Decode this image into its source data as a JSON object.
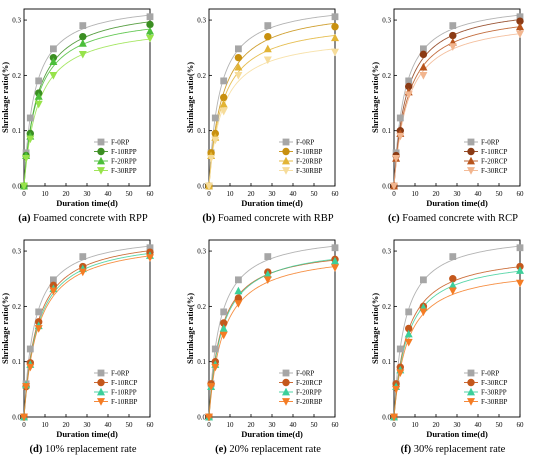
{
  "chart_data": [
    {
      "type": "scatter",
      "panel_label": "(a)",
      "caption": "Foamed concrete with RPP",
      "xlabel": "Duration time(d)",
      "ylabel": "Shrinkage ratio(%)",
      "xlim": [
        0,
        60
      ],
      "ylim": [
        0,
        0.32
      ],
      "xticks": [
        "0",
        "10",
        "20",
        "30",
        "40",
        "50",
        "60"
      ],
      "yticks": [
        "0.0",
        "0.1",
        "0.2",
        "0.3"
      ],
      "legend_position": "lower-right",
      "x": [
        0,
        1,
        3,
        7,
        14,
        28,
        60
      ],
      "series": [
        {
          "name": "F-0RP",
          "color": "#a6a6a6",
          "marker": "square",
          "values": [
            0,
            0.06,
            0.123,
            0.19,
            0.248,
            0.29,
            0.306
          ]
        },
        {
          "name": "F-10RPP",
          "color": "#3b8e22",
          "marker": "circle",
          "values": [
            0,
            0.055,
            0.095,
            0.168,
            0.232,
            0.27,
            0.292
          ]
        },
        {
          "name": "F-20RPP",
          "color": "#4cbf3a",
          "marker": "triangle-up",
          "values": [
            0,
            0.055,
            0.09,
            0.162,
            0.225,
            0.258,
            0.28
          ]
        },
        {
          "name": "F-30RPP",
          "color": "#97e34a",
          "marker": "triangle-down",
          "values": [
            0,
            0.05,
            0.085,
            0.148,
            0.2,
            0.238,
            0.267
          ]
        }
      ]
    },
    {
      "type": "scatter",
      "panel_label": "(b)",
      "caption": "Foamed concrete with RBP",
      "xlabel": "Duration time(d)",
      "ylabel": "Shrinkage ratio(%)",
      "xlim": [
        0,
        60
      ],
      "ylim": [
        0,
        0.32
      ],
      "xticks": [
        "0",
        "10",
        "20",
        "30",
        "40",
        "50",
        "60"
      ],
      "yticks": [
        "0.0",
        "0.1",
        "0.2",
        "0.3"
      ],
      "legend_position": "lower-right",
      "x": [
        0,
        1,
        3,
        7,
        14,
        28,
        60
      ],
      "series": [
        {
          "name": "F-0RP",
          "color": "#a6a6a6",
          "marker": "square",
          "values": [
            0,
            0.06,
            0.123,
            0.19,
            0.248,
            0.29,
            0.306
          ]
        },
        {
          "name": "F-10RBP",
          "color": "#c8900f",
          "marker": "circle",
          "values": [
            0,
            0.06,
            0.095,
            0.16,
            0.232,
            0.27,
            0.288
          ]
        },
        {
          "name": "F-20RBP",
          "color": "#e2b435",
          "marker": "triangle-up",
          "values": [
            0,
            0.055,
            0.088,
            0.148,
            0.215,
            0.248,
            0.268
          ]
        },
        {
          "name": "F-30RBP",
          "color": "#f6dc9a",
          "marker": "triangle-down",
          "values": [
            0,
            0.05,
            0.083,
            0.135,
            0.2,
            0.228,
            0.242
          ]
        }
      ]
    },
    {
      "type": "scatter",
      "panel_label": "(c)",
      "caption": "Foamed concrete with RCP",
      "xlabel": "Duration time(d)",
      "ylabel": "Shrinkage ratio(%)",
      "xlim": [
        0,
        60
      ],
      "ylim": [
        0,
        0.32
      ],
      "xticks": [
        "0",
        "10",
        "20",
        "30",
        "40",
        "50",
        "60"
      ],
      "yticks": [
        "0.0",
        "0.1",
        "0.2",
        "0.3"
      ],
      "legend_position": "lower-right",
      "x": [
        0,
        1,
        3,
        7,
        14,
        28,
        60
      ],
      "series": [
        {
          "name": "F-0RP",
          "color": "#a6a6a6",
          "marker": "square",
          "values": [
            0,
            0.06,
            0.123,
            0.19,
            0.248,
            0.29,
            0.306
          ]
        },
        {
          "name": "F-10RCP",
          "color": "#8b3a14",
          "marker": "circle",
          "values": [
            0,
            0.055,
            0.1,
            0.18,
            0.238,
            0.272,
            0.298
          ]
        },
        {
          "name": "F-20RCP",
          "color": "#b8541c",
          "marker": "triangle-up",
          "values": [
            0,
            0.05,
            0.095,
            0.17,
            0.215,
            0.26,
            0.288
          ]
        },
        {
          "name": "F-30RCP",
          "color": "#f2b58e",
          "marker": "triangle-down",
          "values": [
            0,
            0.05,
            0.09,
            0.165,
            0.2,
            0.252,
            0.275
          ]
        }
      ]
    },
    {
      "type": "scatter",
      "panel_label": "(d)",
      "caption": "10% replacement rate",
      "xlabel": "Duration time(d)",
      "ylabel": "Shrinkage ratio(%)",
      "xlim": [
        0,
        60
      ],
      "ylim": [
        0,
        0.32
      ],
      "xticks": [
        "0",
        "10",
        "20",
        "30",
        "40",
        "50",
        "60"
      ],
      "yticks": [
        "0.0",
        "0.1",
        "0.2",
        "0.3"
      ],
      "legend_position": "lower-right",
      "x": [
        0,
        1,
        3,
        7,
        14,
        28,
        60
      ],
      "series": [
        {
          "name": "F-0RP",
          "color": "#a6a6a6",
          "marker": "square",
          "values": [
            0,
            0.06,
            0.123,
            0.19,
            0.248,
            0.29,
            0.306
          ]
        },
        {
          "name": "F-10RCP",
          "color": "#c4581c",
          "marker": "circle",
          "values": [
            0,
            0.055,
            0.098,
            0.172,
            0.238,
            0.272,
            0.298
          ]
        },
        {
          "name": "F-10RPP",
          "color": "#3ccf9a",
          "marker": "triangle-up",
          "values": [
            0,
            0.058,
            0.095,
            0.165,
            0.232,
            0.268,
            0.292
          ]
        },
        {
          "name": "F-10RBP",
          "color": "#f47c24",
          "marker": "triangle-down",
          "values": [
            0,
            0.055,
            0.09,
            0.16,
            0.228,
            0.262,
            0.288
          ]
        }
      ]
    },
    {
      "type": "scatter",
      "panel_label": "(e)",
      "caption": "20% replacement rate",
      "xlabel": "Duration time(d)",
      "ylabel": "Shrinkage ratio(%)",
      "xlim": [
        0,
        60
      ],
      "ylim": [
        0,
        0.32
      ],
      "xticks": [
        "0",
        "10",
        "20",
        "30",
        "40",
        "50",
        "60"
      ],
      "yticks": [
        "0.0",
        "0.1",
        "0.2",
        "0.3"
      ],
      "legend_position": "lower-right",
      "x": [
        0,
        1,
        3,
        7,
        14,
        28,
        60
      ],
      "series": [
        {
          "name": "F-0RP",
          "color": "#a6a6a6",
          "marker": "square",
          "values": [
            0,
            0.06,
            0.123,
            0.19,
            0.248,
            0.29,
            0.306
          ]
        },
        {
          "name": "F-20RCP",
          "color": "#c4581c",
          "marker": "circle",
          "values": [
            0,
            0.06,
            0.1,
            0.17,
            0.215,
            0.262,
            0.285
          ]
        },
        {
          "name": "F-20RPP",
          "color": "#3ccf9a",
          "marker": "triangle-up",
          "values": [
            0,
            0.055,
            0.095,
            0.16,
            0.228,
            0.258,
            0.282
          ]
        },
        {
          "name": "F-20RBP",
          "color": "#f47c24",
          "marker": "triangle-down",
          "values": [
            0,
            0.055,
            0.09,
            0.148,
            0.205,
            0.248,
            0.27
          ]
        }
      ]
    },
    {
      "type": "scatter",
      "panel_label": "(f)",
      "caption": "30% replacement rate",
      "xlabel": "Duration time(d)",
      "ylabel": "Shrinkage ratio(%)",
      "xlim": [
        0,
        60
      ],
      "ylim": [
        0,
        0.32
      ],
      "xticks": [
        "0",
        "10",
        "20",
        "30",
        "40",
        "50",
        "60"
      ],
      "yticks": [
        "0.0",
        "0.1",
        "0.2",
        "0.3"
      ],
      "legend_position": "lower-right",
      "x": [
        0,
        1,
        3,
        7,
        14,
        28,
        60
      ],
      "series": [
        {
          "name": "F-0RP",
          "color": "#a6a6a6",
          "marker": "square",
          "values": [
            0,
            0.06,
            0.123,
            0.19,
            0.248,
            0.29,
            0.306
          ]
        },
        {
          "name": "F-30RCP",
          "color": "#c4581c",
          "marker": "circle",
          "values": [
            0,
            0.06,
            0.09,
            0.16,
            0.2,
            0.25,
            0.272
          ]
        },
        {
          "name": "F-30RPP",
          "color": "#3ccf9a",
          "marker": "triangle-up",
          "values": [
            0,
            0.055,
            0.085,
            0.15,
            0.198,
            0.238,
            0.265
          ]
        },
        {
          "name": "F-30RBP",
          "color": "#f47c24",
          "marker": "triangle-down",
          "values": [
            0,
            0.05,
            0.08,
            0.135,
            0.19,
            0.228,
            0.242
          ]
        }
      ]
    }
  ]
}
